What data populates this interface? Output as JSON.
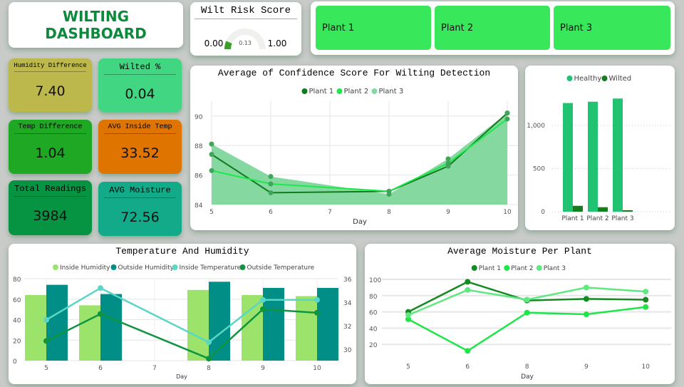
{
  "title": {
    "line1": "WILTING",
    "line2": "DASHBOARD"
  },
  "gauge": {
    "title": "Wilt Risk Score",
    "min_label": "0.00",
    "max_label": "1.00",
    "value_label": "0.13",
    "value": 0.13,
    "min": 0,
    "max": 1,
    "color": "#3aa02a"
  },
  "plants": [
    {
      "label": "Plant 1"
    },
    {
      "label": "Plant 2"
    },
    {
      "label": "Plant 3"
    }
  ],
  "kpis": [
    {
      "label": "Humidity Difference",
      "value": "7.40",
      "color": "#bdb84c"
    },
    {
      "label": "Wilted %",
      "value": "0.04",
      "color": "#40d682"
    },
    {
      "label": "Temp Difference",
      "value": "1.04",
      "color": "#1ea823"
    },
    {
      "label": "AVG Inside Temp",
      "value": "33.52",
      "color": "#e07400"
    },
    {
      "label": "Total Readings",
      "value": "3984",
      "color": "#079442"
    },
    {
      "label": "AVG Moisture",
      "value": "72.56",
      "color": "#12aa88"
    }
  ],
  "chart_data": [
    {
      "id": "confidence",
      "type": "line",
      "title": "Average of Confidence Score For Wilting Detection",
      "xlabel": "Day",
      "x": [
        5,
        6,
        8,
        9,
        10
      ],
      "xticks": [
        5,
        6,
        7,
        8,
        9,
        10
      ],
      "ylim": [
        84,
        91
      ],
      "yticks": [
        84,
        86,
        88,
        90
      ],
      "legend": "top",
      "series": [
        {
          "name": "Plant 1",
          "values": [
            87.4,
            84.8,
            84.9,
            86.6,
            90.2
          ],
          "color": "#127a1e"
        },
        {
          "name": "Plant 2",
          "values": [
            86.3,
            85.4,
            84.9,
            86.8,
            89.8
          ],
          "color": "#1ee84a"
        },
        {
          "name": "Plant 3",
          "values": [
            88.1,
            85.9,
            84.7,
            87.1,
            90.2
          ],
          "color": "#85d9a0",
          "style": "area"
        }
      ]
    },
    {
      "id": "health",
      "type": "bar",
      "categories": [
        "Plant 1",
        "Plant 2",
        "Plant 3"
      ],
      "ylim": [
        0,
        1400
      ],
      "yticks": [
        0,
        500,
        1000
      ],
      "ytick_labels": [
        "0",
        "500",
        "1,000"
      ],
      "legend": "top",
      "series": [
        {
          "name": "Healthy",
          "values": [
            1260,
            1275,
            1312
          ],
          "color": "#22c273"
        },
        {
          "name": "Wilted",
          "values": [
            68,
            52,
            17
          ],
          "color": "#137f1c"
        }
      ]
    },
    {
      "id": "temphum",
      "type": "bar",
      "title": "Temperature And Humidity",
      "xlabel": "Day",
      "categories": [
        5,
        6,
        7,
        8,
        9,
        10
      ],
      "ylim": [
        0,
        80
      ],
      "yticks": [
        0,
        20,
        40,
        60,
        80
      ],
      "y2lim": [
        29,
        36
      ],
      "y2ticks": [
        30,
        32,
        34,
        36
      ],
      "legend": "top",
      "series": [
        {
          "name": "Inside Humidity",
          "values": [
            64,
            54,
            null,
            69,
            64,
            63
          ],
          "color": "#9be36a",
          "axis": "left",
          "kind": "bar"
        },
        {
          "name": "Outside Humidity",
          "values": [
            74,
            65,
            null,
            77,
            71,
            71
          ],
          "color": "#008e87",
          "axis": "left",
          "kind": "bar"
        },
        {
          "name": "Inside Temperature",
          "values": [
            32.5,
            35.2,
            null,
            30.6,
            34.2,
            34.2
          ],
          "color": "#5ad6c4",
          "axis": "right",
          "kind": "line"
        },
        {
          "name": "Outside Temperature",
          "values": [
            30.7,
            33.0,
            null,
            29.2,
            33.4,
            33.1
          ],
          "color": "#0f9440",
          "axis": "right",
          "kind": "line"
        }
      ]
    },
    {
      "id": "moisture",
      "type": "line",
      "title": "Average Moisture Per Plant",
      "xlabel": "Day",
      "categories": [
        5,
        6,
        8,
        9,
        10
      ],
      "ylim": [
        0,
        105
      ],
      "yticks": [
        20,
        40,
        60,
        80,
        100
      ],
      "legend": "top",
      "series": [
        {
          "name": "Plant 1",
          "values": [
            60,
            97,
            74,
            76,
            75
          ],
          "color": "#148a22"
        },
        {
          "name": "Plant 2",
          "values": [
            51,
            12,
            59,
            57,
            66
          ],
          "color": "#1de648"
        },
        {
          "name": "Plant 3",
          "values": [
            56,
            87,
            75,
            90,
            85
          ],
          "color": "#5fe880"
        }
      ]
    }
  ]
}
